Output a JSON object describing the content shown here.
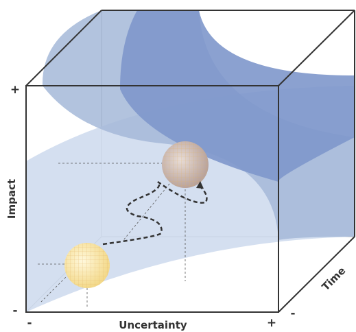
{
  "axes": {
    "impact": {
      "label": "Impact",
      "plus": "+",
      "minus": "-"
    },
    "uncertainty": {
      "label": "Uncertainty",
      "minus": "-",
      "plus": "+"
    },
    "time": {
      "label": "Time",
      "minus": "-"
    }
  }
}
